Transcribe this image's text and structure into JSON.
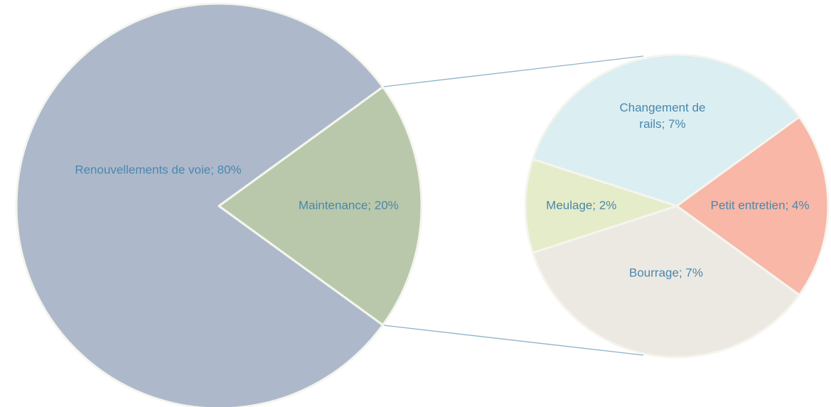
{
  "chart_data": [
    {
      "type": "pie",
      "values": [
        80,
        20
      ],
      "value_labels": [
        "Renouvellements de voie; 80%",
        "Maintenance; 20%"
      ],
      "colors": [
        "#adb9cb",
        "#b9c8ab"
      ]
    },
    {
      "type": "pie",
      "values": [
        7,
        4,
        7,
        2
      ],
      "value_labels": [
        "Changement de rails; 7%",
        "Petit entretien; 4%",
        "Bourrage; 7%",
        "Meulage; 2%"
      ],
      "colors": [
        "#dbeef2",
        "#f8b7a7",
        "#ece9e3",
        "#e5ecc9"
      ]
    }
  ]
}
